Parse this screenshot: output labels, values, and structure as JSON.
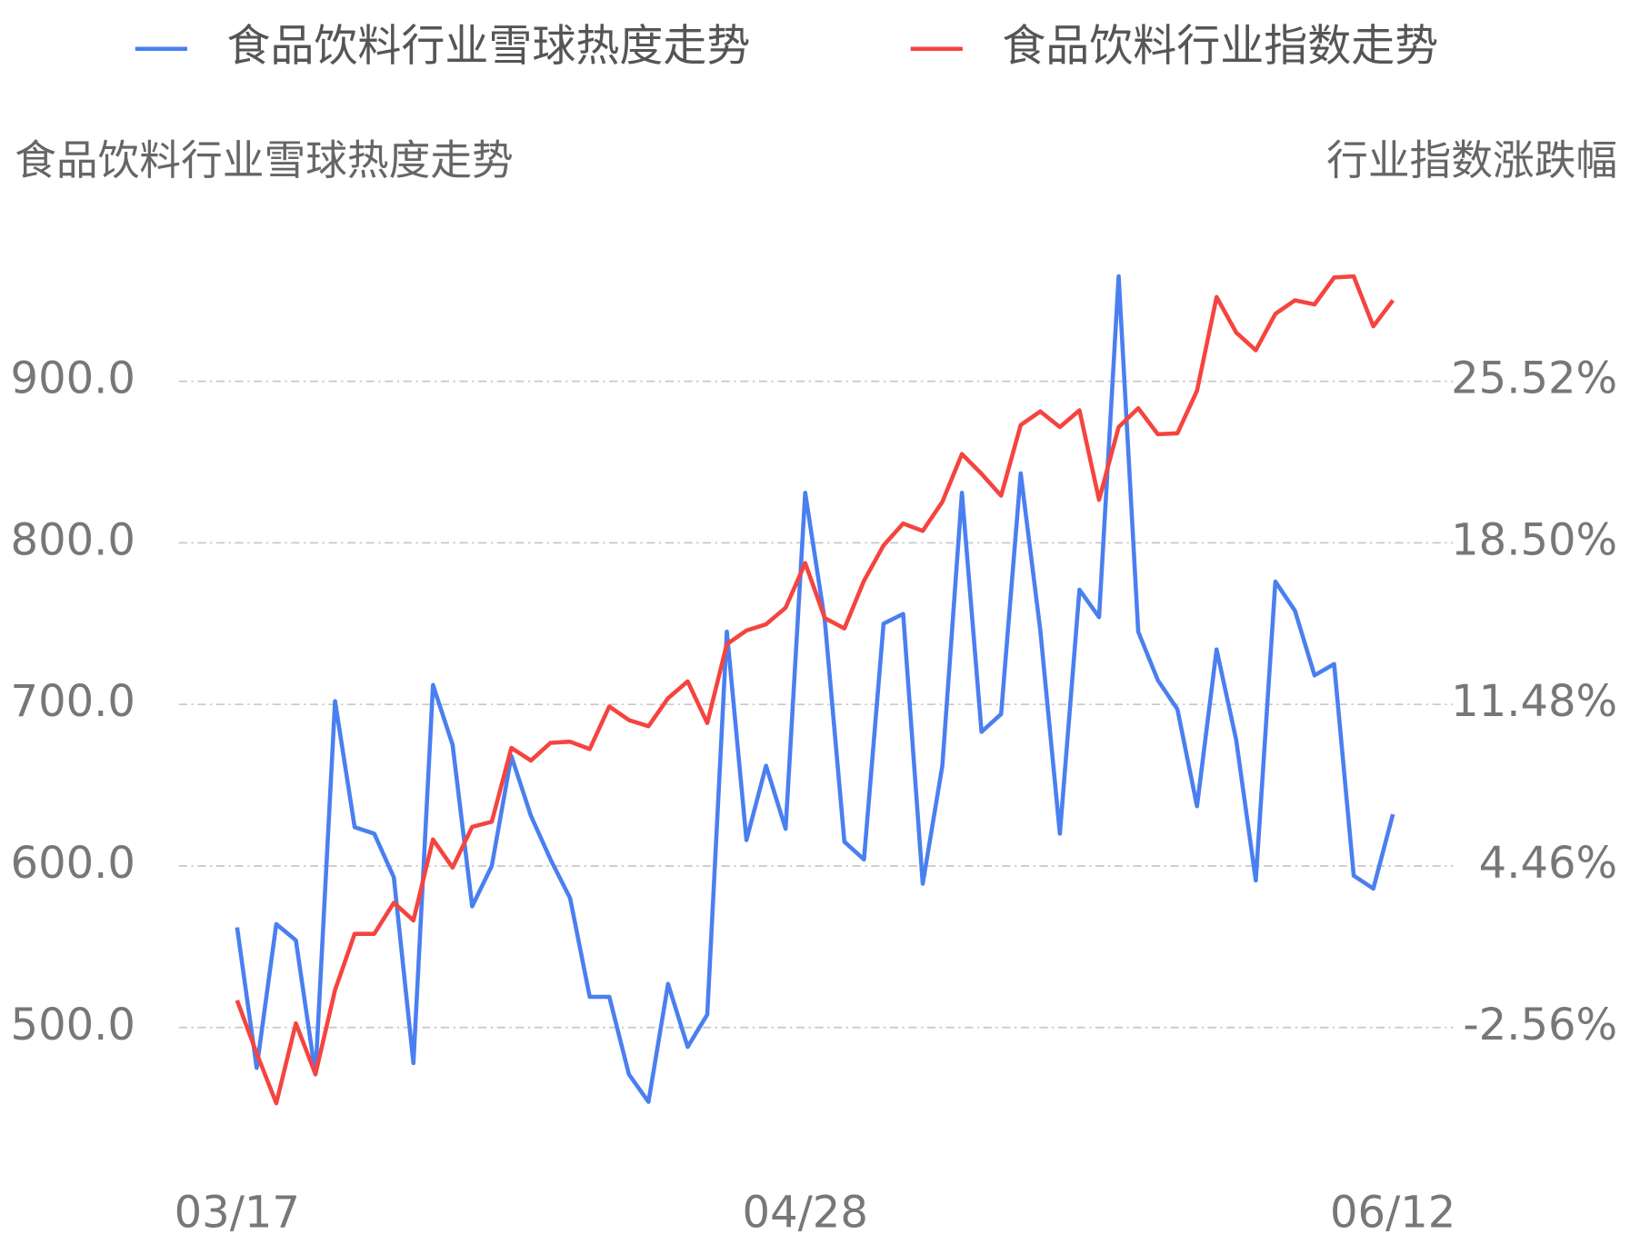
{
  "chart_data": {
    "type": "line",
    "y_title": "食品饮料行业雪球热度走势",
    "y2_title": "行业指数涨跌幅",
    "categories": [
      "03/17",
      null,
      null,
      null,
      null,
      null,
      null,
      null,
      null,
      null,
      null,
      null,
      null,
      null,
      null,
      null,
      null,
      null,
      null,
      null,
      null,
      null,
      null,
      null,
      null,
      null,
      null,
      null,
      null,
      "04/28",
      null,
      null,
      null,
      null,
      null,
      null,
      null,
      null,
      null,
      null,
      null,
      null,
      null,
      null,
      null,
      null,
      null,
      null,
      null,
      null,
      null,
      null,
      null,
      null,
      null,
      null,
      null,
      null,
      null,
      "06/12"
    ],
    "series": [
      {
        "name": "食品饮料行业雪球热度走势",
        "color": "#4a7ff0",
        "values": [
          562,
          475,
          564,
          554,
          471,
          702,
          624,
          620,
          593,
          478,
          712,
          675,
          575,
          600,
          668,
          631,
          604,
          580,
          519,
          519,
          471,
          454,
          527,
          488,
          508,
          745,
          616,
          662,
          623,
          831,
          752,
          615,
          604,
          750,
          756,
          589,
          662,
          831,
          683,
          694,
          843,
          746,
          620,
          771,
          754,
          965,
          745,
          715,
          697,
          637,
          734,
          678,
          591,
          776,
          758,
          718,
          725,
          594,
          586,
          632
        ]
      },
      {
        "name": "食品饮料行业指数走势",
        "color": "#f5443f",
        "axis": "y2",
        "values": [
          -1.38,
          -3.68,
          -5.85,
          -2.38,
          -4.59,
          -0.93,
          1.51,
          1.51,
          2.86,
          2.09,
          5.61,
          4.39,
          6.16,
          6.38,
          9.59,
          9.04,
          9.81,
          9.86,
          9.54,
          11.39,
          10.8,
          10.53,
          11.75,
          12.48,
          10.67,
          14.1,
          14.69,
          14.96,
          15.68,
          17.62,
          15.23,
          14.78,
          16.85,
          18.39,
          19.34,
          19.02,
          20.28,
          22.36,
          21.5,
          20.55,
          23.62,
          24.21,
          23.53,
          24.26,
          20.37,
          23.53,
          24.35,
          23.22,
          23.26,
          25.11,
          29.18,
          27.64,
          26.87,
          28.45,
          29.04,
          28.86,
          30.03,
          30.08,
          27.91,
          29.04
        ]
      }
    ],
    "ylim": [
      400,
      1000
    ],
    "yticks": [
      {
        "value": 500,
        "label": "500.0"
      },
      {
        "value": 600,
        "label": "600.0"
      },
      {
        "value": 700,
        "label": "700.0"
      },
      {
        "value": 800,
        "label": "800.0"
      },
      {
        "value": 900,
        "label": "900.0"
      }
    ],
    "y2lim": [
      -9.58,
      32.54
    ],
    "y2ticks": [
      {
        "value": -2.56,
        "label": "-2.56%"
      },
      {
        "value": 4.46,
        "label": "4.46%"
      },
      {
        "value": 11.48,
        "label": "11.48%"
      },
      {
        "value": 18.5,
        "label": "18.50%"
      },
      {
        "value": 25.52,
        "label": "25.52%"
      }
    ],
    "grid": true,
    "legend": "top"
  }
}
